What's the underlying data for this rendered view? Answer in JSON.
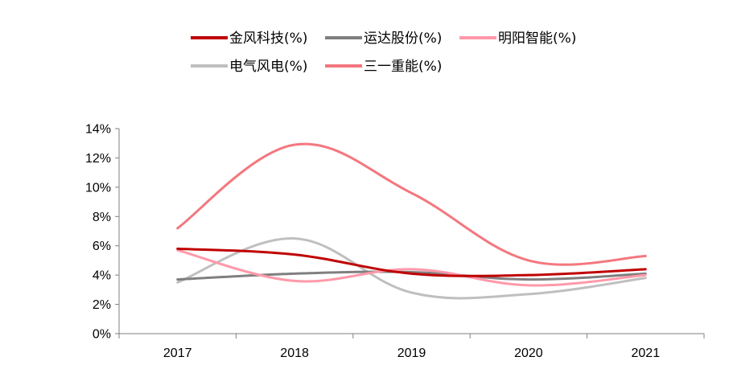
{
  "chart_data": {
    "type": "line",
    "categories": [
      "2017",
      "2018",
      "2019",
      "2020",
      "2021"
    ],
    "series": [
      {
        "name": "金风科技(%)",
        "values": [
          5.8,
          5.4,
          4.1,
          4.0,
          4.4
        ],
        "color": "#c00000"
      },
      {
        "name": "运达股份(%)",
        "values": [
          3.7,
          4.1,
          4.2,
          3.7,
          4.1
        ],
        "color": "#7f7f7f"
      },
      {
        "name": "明阳智能(%)",
        "values": [
          5.7,
          3.6,
          4.4,
          3.3,
          4.0
        ],
        "color": "#ff99aa"
      },
      {
        "name": "电气风电(%)",
        "values": [
          3.5,
          6.5,
          2.8,
          2.7,
          3.8
        ],
        "color": "#bfbfbf"
      },
      {
        "name": "三一重能(%)",
        "values": [
          7.2,
          12.9,
          9.6,
          5.0,
          5.3
        ],
        "color": "#f4777f"
      }
    ],
    "y_ticks": [
      "0%",
      "2%",
      "4%",
      "6%",
      "8%",
      "10%",
      "12%",
      "14%"
    ],
    "ylim": [
      0,
      14
    ],
    "legend": "top",
    "grid": false
  }
}
